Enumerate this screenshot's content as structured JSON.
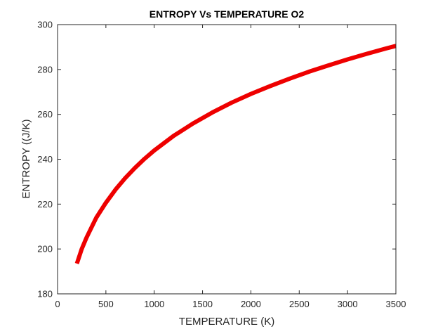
{
  "chart_data": {
    "type": "line",
    "title": "ENTROPY Vs TEMPERATURE O2",
    "xlabel": "TEMPERATURE (K)",
    "ylabel": "ENTROPY ((J/K)",
    "xlim": [
      0,
      3500
    ],
    "ylim": [
      180,
      300
    ],
    "xticks": [
      "0",
      "500",
      "1000",
      "1500",
      "2000",
      "2500",
      "3000",
      "3500"
    ],
    "yticks": [
      "180",
      "200",
      "220",
      "240",
      "260",
      "280",
      "300"
    ],
    "grid": false,
    "series": [
      {
        "color": "#ee0000",
        "x": [
          200,
          250,
          300,
          400,
          500,
          600,
          700,
          800,
          900,
          1000,
          1200,
          1400,
          1600,
          1800,
          2000,
          2200,
          2400,
          2600,
          2800,
          3000,
          3200,
          3400,
          3500
        ],
        "y": [
          193.5,
          200.0,
          205.1,
          213.9,
          220.6,
          226.5,
          231.6,
          236.1,
          240.2,
          243.9,
          250.4,
          255.9,
          260.8,
          265.2,
          269.1,
          272.6,
          275.9,
          279.0,
          281.8,
          284.5,
          287.0,
          289.4,
          290.5
        ]
      }
    ]
  }
}
